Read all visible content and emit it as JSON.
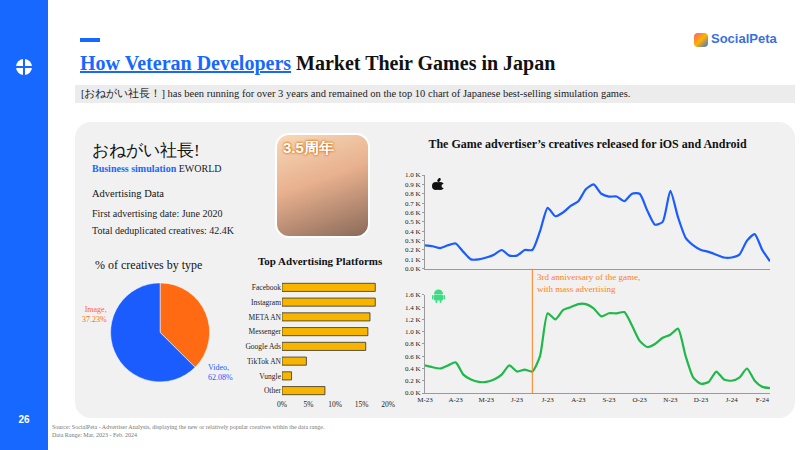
{
  "page": {
    "title_highlight": "How Veteran Developers",
    "title_rest": "Market Their Games in Japan",
    "brand": "SocialPeta",
    "page_number": "26",
    "subtitle": "[おねがい社長！] has been running for over 3 years and remained on the top 10 chart of Japanese best-selling simulation games.",
    "game": {
      "name": "おねがい社長!",
      "genre": "Business simulation",
      "developer": "EWORLD",
      "section": "Advertising Data",
      "facts": [
        "First advertising date: June 2020",
        "Total deduplicated creatives: 42.4K"
      ],
      "icon_text": "3.5周年"
    },
    "footer": [
      "Source: SocialPeta - Advertiser Analysis, displaying the new or relatively popular creatives within the data range.",
      "Data Range: Mar. 2023 - Feb. 2024"
    ]
  },
  "chart_data": [
    {
      "type": "pie",
      "title": "% of creatives by type",
      "categories": [
        "Image,",
        "Video,"
      ],
      "values": [
        37.23,
        62.08
      ],
      "value_labels": [
        "37.23%",
        "62.08%"
      ],
      "colors": [
        "#ff6a13",
        "#1b5cff"
      ]
    },
    {
      "type": "bar",
      "orientation": "horizontal",
      "title": "Top Advertising Platforms",
      "categories": [
        "Facebook",
        "Instagram",
        "META AN",
        "Messenger",
        "Google Ads",
        "TikTok AN",
        "Vungle",
        "Other"
      ],
      "values": [
        17.6,
        17.6,
        16.6,
        16.2,
        15.8,
        4.6,
        1.8,
        8.1
      ],
      "color": "#f7b500",
      "grid": false,
      "xlim": [
        0,
        20
      ],
      "xticks": [
        {
          "value": 0,
          "label": "0%"
        },
        {
          "value": 5,
          "label": "5%"
        },
        {
          "value": 10,
          "label": "10%"
        },
        {
          "value": 15,
          "label": "15%"
        },
        {
          "value": 20,
          "label": "20%"
        }
      ]
    },
    {
      "type": "line",
      "title": "The Game advertiser’s creatives released for iOS and Android",
      "grid": false,
      "categories": [
        "M-23",
        null,
        null,
        null,
        "A-23",
        null,
        null,
        null,
        "M-23",
        null,
        null,
        null,
        "J-23",
        null,
        null,
        null,
        "J-23",
        null,
        null,
        null,
        "A-23",
        null,
        null,
        null,
        "S-23",
        null,
        null,
        null,
        "O-23",
        null,
        null,
        null,
        "N-23",
        null,
        null,
        null,
        "D-23",
        null,
        null,
        null,
        "J-24",
        null,
        null,
        null,
        "F-24",
        null
      ],
      "series": [
        {
          "color": "#1a5cff",
          "values": [
            0.25,
            0.24,
            0.22,
            0.25,
            0.27,
            0.18,
            0.1,
            0.1,
            0.12,
            0.15,
            0.2,
            0.14,
            0.14,
            0.2,
            0.2,
            0.4,
            0.65,
            0.56,
            0.6,
            0.67,
            0.72,
            0.85,
            0.9,
            0.8,
            0.77,
            0.77,
            0.72,
            0.8,
            0.8,
            0.62,
            0.47,
            0.5,
            0.83,
            0.55,
            0.33,
            0.25,
            0.2,
            0.18,
            0.15,
            0.12,
            0.12,
            0.15,
            0.3,
            0.37,
            0.2,
            0.08
          ]
        },
        {
          "color": "#1fb84a",
          "axis": "y2",
          "values": [
            0.45,
            0.42,
            0.4,
            0.45,
            0.5,
            0.3,
            0.22,
            0.18,
            0.18,
            0.22,
            0.3,
            0.45,
            0.35,
            0.38,
            0.35,
            0.6,
            1.3,
            1.2,
            1.35,
            1.4,
            1.45,
            1.45,
            1.38,
            1.25,
            1.3,
            1.3,
            1.32,
            1.1,
            0.85,
            0.75,
            0.8,
            0.9,
            0.95,
            1.05,
            0.6,
            0.25,
            0.15,
            0.18,
            0.35,
            0.22,
            0.2,
            0.25,
            0.4,
            0.2,
            0.1,
            0.08
          ]
        }
      ],
      "ylim": [
        0,
        1.0
      ],
      "yticks": [
        {
          "value": 0,
          "label": "0.0 K"
        },
        {
          "value": 0.1,
          "label": "0.1 K"
        },
        {
          "value": 0.2,
          "label": "0.2 K"
        },
        {
          "value": 0.3,
          "label": "0.3 K"
        },
        {
          "value": 0.4,
          "label": "0.4 K"
        },
        {
          "value": 0.5,
          "label": "0.5 K"
        },
        {
          "value": 0.6,
          "label": "0.6 K"
        },
        {
          "value": 0.7,
          "label": "0.7 K"
        },
        {
          "value": 0.8,
          "label": "0.8 K"
        },
        {
          "value": 0.9,
          "label": "0.9 K"
        },
        {
          "value": 1.0,
          "label": "1.0 K"
        }
      ],
      "y2lim": [
        0,
        1.6
      ],
      "y2ticks": [
        {
          "value": 0,
          "label": "0.0 K"
        },
        {
          "value": 0.2,
          "label": "0.2 K"
        },
        {
          "value": 0.4,
          "label": "0.4 K"
        },
        {
          "value": 0.6,
          "label": "0.6 K"
        },
        {
          "value": 0.8,
          "label": "0.8 K"
        },
        {
          "value": 1.0,
          "label": "1.0 K"
        },
        {
          "value": 1.2,
          "label": "1.2 K"
        },
        {
          "value": 1.4,
          "label": "1.4 K"
        },
        {
          "value": 1.6,
          "label": "1.6 K"
        }
      ],
      "annotations": [
        {
          "text": "3rd anniversary of the game, with mass advertising",
          "x": 14
        }
      ]
    }
  ]
}
